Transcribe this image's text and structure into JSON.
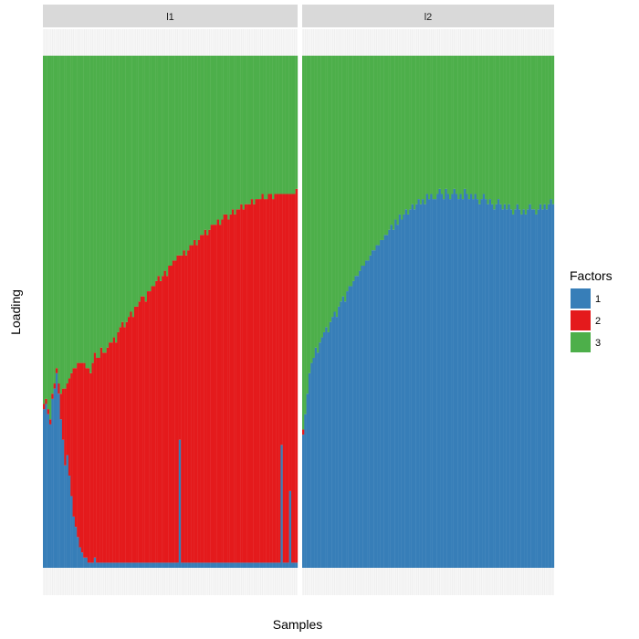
{
  "chart_data": {
    "type": "bar",
    "stacked": true,
    "xlabel": "Samples",
    "ylabel": "Loading",
    "ylim": [
      0,
      1
    ],
    "grid": false,
    "legend": {
      "title": "Factors",
      "position": "right",
      "entries": [
        {
          "label": "1",
          "color": "#377EB8"
        },
        {
          "label": "2",
          "color": "#E41A1C"
        },
        {
          "label": "3",
          "color": "#4DAF4A"
        }
      ]
    },
    "stack_order_bottom_to_top": [
      "1",
      "2",
      "3"
    ],
    "facets": [
      {
        "label": "l1",
        "samples": 120,
        "series": [
          {
            "name": "1",
            "values": [
              0.31,
              0.32,
              0.3,
              0.28,
              0.33,
              0.35,
              0.38,
              0.34,
              0.29,
              0.25,
              0.2,
              0.22,
              0.18,
              0.14,
              0.1,
              0.08,
              0.06,
              0.04,
              0.03,
              0.02,
              0.02,
              0.01,
              0.01,
              0.01,
              0.02,
              0.01,
              0.01,
              0.01,
              0.01,
              0.01,
              0.01,
              0.01,
              0.01,
              0.01,
              0.01,
              0.01,
              0.01,
              0.01,
              0.01,
              0.01,
              0.01,
              0.01,
              0.01,
              0.01,
              0.01,
              0.01,
              0.01,
              0.01,
              0.01,
              0.01,
              0.01,
              0.01,
              0.01,
              0.01,
              0.01,
              0.01,
              0.01,
              0.01,
              0.01,
              0.01,
              0.01,
              0.01,
              0.01,
              0.01,
              0.25,
              0.01,
              0.01,
              0.01,
              0.01,
              0.01,
              0.01,
              0.01,
              0.01,
              0.01,
              0.01,
              0.01,
              0.01,
              0.01,
              0.01,
              0.01,
              0.01,
              0.01,
              0.01,
              0.01,
              0.01,
              0.01,
              0.01,
              0.01,
              0.01,
              0.01,
              0.01,
              0.01,
              0.01,
              0.01,
              0.01,
              0.01,
              0.01,
              0.01,
              0.01,
              0.01,
              0.01,
              0.01,
              0.01,
              0.01,
              0.01,
              0.01,
              0.01,
              0.01,
              0.01,
              0.01,
              0.01,
              0.01,
              0.24,
              0.01,
              0.01,
              0.01,
              0.15,
              0.01,
              0.01,
              0.01
            ]
          },
          {
            "name": "2",
            "values": [
              0.01,
              0.01,
              0.01,
              0.01,
              0.01,
              0.01,
              0.01,
              0.02,
              0.05,
              0.1,
              0.15,
              0.14,
              0.19,
              0.24,
              0.29,
              0.31,
              0.34,
              0.36,
              0.37,
              0.38,
              0.37,
              0.38,
              0.37,
              0.39,
              0.4,
              0.4,
              0.4,
              0.42,
              0.41,
              0.41,
              0.42,
              0.43,
              0.43,
              0.44,
              0.43,
              0.45,
              0.46,
              0.47,
              0.46,
              0.47,
              0.48,
              0.49,
              0.48,
              0.5,
              0.5,
              0.51,
              0.52,
              0.52,
              0.51,
              0.53,
              0.53,
              0.54,
              0.54,
              0.55,
              0.56,
              0.55,
              0.56,
              0.57,
              0.56,
              0.58,
              0.58,
              0.59,
              0.59,
              0.6,
              0.36,
              0.6,
              0.61,
              0.6,
              0.61,
              0.62,
              0.62,
              0.63,
              0.62,
              0.63,
              0.64,
              0.64,
              0.65,
              0.64,
              0.65,
              0.66,
              0.66,
              0.66,
              0.67,
              0.66,
              0.67,
              0.68,
              0.68,
              0.67,
              0.68,
              0.69,
              0.68,
              0.69,
              0.69,
              0.7,
              0.69,
              0.7,
              0.7,
              0.7,
              0.71,
              0.7,
              0.71,
              0.71,
              0.71,
              0.72,
              0.71,
              0.71,
              0.72,
              0.72,
              0.71,
              0.72,
              0.72,
              0.72,
              0.49,
              0.72,
              0.72,
              0.72,
              0.58,
              0.72,
              0.72,
              0.73
            ]
          },
          {
            "name": "3",
            "values": [
              0.68,
              0.67,
              0.69,
              0.71,
              0.66,
              0.64,
              0.61,
              0.64,
              0.66,
              0.65,
              0.65,
              0.64,
              0.63,
              0.62,
              0.61,
              0.61,
              0.6,
              0.6,
              0.6,
              0.6,
              0.61,
              0.61,
              0.62,
              0.6,
              0.58,
              0.59,
              0.59,
              0.57,
              0.58,
              0.58,
              0.57,
              0.56,
              0.56,
              0.55,
              0.56,
              0.54,
              0.53,
              0.52,
              0.53,
              0.52,
              0.51,
              0.5,
              0.51,
              0.49,
              0.49,
              0.48,
              0.47,
              0.47,
              0.48,
              0.46,
              0.46,
              0.45,
              0.45,
              0.44,
              0.43,
              0.44,
              0.43,
              0.42,
              0.43,
              0.41,
              0.41,
              0.4,
              0.4,
              0.39,
              0.39,
              0.39,
              0.38,
              0.39,
              0.38,
              0.37,
              0.37,
              0.36,
              0.37,
              0.36,
              0.35,
              0.35,
              0.34,
              0.35,
              0.34,
              0.33,
              0.33,
              0.33,
              0.32,
              0.33,
              0.32,
              0.31,
              0.31,
              0.32,
              0.31,
              0.3,
              0.31,
              0.3,
              0.3,
              0.29,
              0.3,
              0.29,
              0.29,
              0.29,
              0.28,
              0.29,
              0.28,
              0.28,
              0.28,
              0.27,
              0.28,
              0.28,
              0.27,
              0.27,
              0.28,
              0.27,
              0.27,
              0.27,
              0.27,
              0.27,
              0.27,
              0.27,
              0.27,
              0.27,
              0.27,
              0.26
            ]
          }
        ]
      },
      {
        "label": "l2",
        "samples": 120,
        "series": [
          {
            "name": "1",
            "values": [
              0.26,
              0.3,
              0.34,
              0.38,
              0.4,
              0.41,
              0.43,
              0.42,
              0.44,
              0.45,
              0.46,
              0.47,
              0.46,
              0.48,
              0.49,
              0.5,
              0.49,
              0.51,
              0.52,
              0.53,
              0.52,
              0.54,
              0.55,
              0.55,
              0.56,
              0.57,
              0.57,
              0.58,
              0.59,
              0.59,
              0.6,
              0.6,
              0.61,
              0.62,
              0.62,
              0.63,
              0.63,
              0.64,
              0.64,
              0.65,
              0.65,
              0.66,
              0.67,
              0.66,
              0.68,
              0.67,
              0.69,
              0.68,
              0.69,
              0.7,
              0.69,
              0.7,
              0.71,
              0.7,
              0.71,
              0.72,
              0.71,
              0.72,
              0.71,
              0.73,
              0.72,
              0.73,
              0.72,
              0.72,
              0.73,
              0.74,
              0.73,
              0.72,
              0.74,
              0.73,
              0.72,
              0.73,
              0.74,
              0.73,
              0.72,
              0.73,
              0.72,
              0.74,
              0.73,
              0.72,
              0.73,
              0.72,
              0.73,
              0.72,
              0.71,
              0.72,
              0.73,
              0.72,
              0.71,
              0.72,
              0.71,
              0.7,
              0.71,
              0.72,
              0.71,
              0.7,
              0.71,
              0.7,
              0.71,
              0.7,
              0.69,
              0.7,
              0.71,
              0.7,
              0.69,
              0.7,
              0.69,
              0.7,
              0.71,
              0.7,
              0.7,
              0.69,
              0.7,
              0.71,
              0.7,
              0.71,
              0.7,
              0.71,
              0.72,
              0.71
            ]
          },
          {
            "name": "2",
            "values": [
              0.01,
              0.0,
              0.0,
              0.0,
              0.0,
              0.0,
              0.0,
              0.0,
              0.0,
              0.0,
              0.0,
              0.0,
              0.0,
              0.0,
              0.0,
              0.0,
              0.0,
              0.0,
              0.0,
              0.0,
              0.0,
              0.0,
              0.0,
              0.0,
              0.0,
              0.0,
              0.0,
              0.0,
              0.0,
              0.0,
              0.0,
              0.0,
              0.0,
              0.0,
              0.0,
              0.0,
              0.0,
              0.0,
              0.0,
              0.0,
              0.0,
              0.0,
              0.0,
              0.0,
              0.0,
              0.0,
              0.0,
              0.0,
              0.0,
              0.0,
              0.0,
              0.0,
              0.0,
              0.0,
              0.0,
              0.0,
              0.0,
              0.0,
              0.0,
              0.0,
              0.0,
              0.0,
              0.0,
              0.0,
              0.0,
              0.0,
              0.0,
              0.0,
              0.0,
              0.0,
              0.0,
              0.0,
              0.0,
              0.0,
              0.0,
              0.0,
              0.0,
              0.0,
              0.0,
              0.0,
              0.0,
              0.0,
              0.0,
              0.0,
              0.0,
              0.0,
              0.0,
              0.0,
              0.0,
              0.0,
              0.0,
              0.0,
              0.0,
              0.0,
              0.0,
              0.0,
              0.0,
              0.0,
              0.0,
              0.0,
              0.0,
              0.0,
              0.0,
              0.0,
              0.0,
              0.0,
              0.0,
              0.0,
              0.0,
              0.0,
              0.0,
              0.0,
              0.0,
              0.0,
              0.0,
              0.0,
              0.0,
              0.0,
              0.0,
              0.0
            ]
          },
          {
            "name": "3",
            "values": [
              0.73,
              0.7,
              0.66,
              0.62,
              0.6,
              0.59,
              0.57,
              0.58,
              0.56,
              0.55,
              0.54,
              0.53,
              0.54,
              0.52,
              0.51,
              0.5,
              0.51,
              0.49,
              0.48,
              0.47,
              0.48,
              0.46,
              0.45,
              0.45,
              0.44,
              0.43,
              0.43,
              0.42,
              0.41,
              0.41,
              0.4,
              0.4,
              0.39,
              0.38,
              0.38,
              0.37,
              0.37,
              0.36,
              0.36,
              0.35,
              0.35,
              0.34,
              0.33,
              0.34,
              0.32,
              0.33,
              0.31,
              0.32,
              0.31,
              0.3,
              0.31,
              0.3,
              0.29,
              0.3,
              0.29,
              0.28,
              0.29,
              0.28,
              0.29,
              0.27,
              0.28,
              0.27,
              0.28,
              0.28,
              0.27,
              0.26,
              0.27,
              0.28,
              0.26,
              0.27,
              0.28,
              0.27,
              0.26,
              0.27,
              0.28,
              0.27,
              0.28,
              0.26,
              0.27,
              0.28,
              0.27,
              0.28,
              0.27,
              0.28,
              0.29,
              0.28,
              0.27,
              0.28,
              0.29,
              0.28,
              0.29,
              0.3,
              0.29,
              0.28,
              0.29,
              0.3,
              0.29,
              0.3,
              0.29,
              0.3,
              0.31,
              0.3,
              0.29,
              0.3,
              0.31,
              0.3,
              0.31,
              0.3,
              0.29,
              0.3,
              0.3,
              0.31,
              0.3,
              0.29,
              0.3,
              0.29,
              0.3,
              0.29,
              0.28,
              0.29
            ]
          }
        ]
      }
    ]
  }
}
